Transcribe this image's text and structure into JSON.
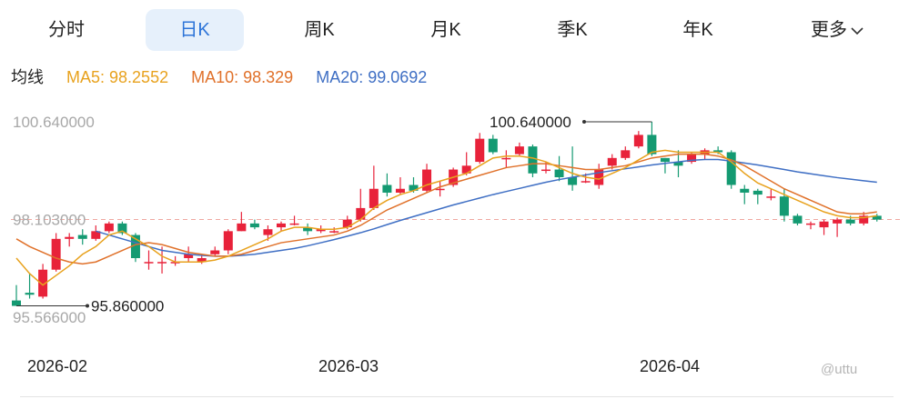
{
  "tabs": [
    {
      "label": "分时",
      "active": false
    },
    {
      "label": "日K",
      "active": true
    },
    {
      "label": "周K",
      "active": false
    },
    {
      "label": "月K",
      "active": false
    },
    {
      "label": "季K",
      "active": false
    },
    {
      "label": "年K",
      "active": false
    }
  ],
  "more": {
    "label": "更多"
  },
  "ma": {
    "title": "均线",
    "ma5": "MA5: 98.2552",
    "ma10": "MA10: 98.329",
    "ma20": "MA20: 99.0692"
  },
  "watermark": "@uttu",
  "colors": {
    "up": "#e8223a",
    "down": "#149a72",
    "ma5": "#e8a21e",
    "ma10": "#e0712a",
    "ma20": "#3f6fc4",
    "ref_line": "#f0a8a0"
  },
  "chart_data": {
    "type": "candlestick",
    "y_axis_labels": [
      "100.640000",
      "98.103000",
      "95.566000"
    ],
    "reference_value": 98.103,
    "annotations": [
      {
        "text": "100.640000",
        "value": 100.64,
        "target": "max-high"
      },
      {
        "text": "95.860000",
        "value": 95.86,
        "target": "min-low"
      }
    ],
    "x_tick_labels": [
      {
        "label": "2026-02",
        "index": 0
      },
      {
        "label": "2026-03",
        "index": 22
      },
      {
        "label": "2026-04",
        "index": 46
      }
    ],
    "ylim": [
      95.566,
      100.64
    ],
    "candles": [
      [
        96.0,
        95.86,
        96.4,
        95.86
      ],
      [
        96.2,
        96.15,
        96.7,
        96.05
      ],
      [
        96.1,
        96.8,
        96.95,
        96.05
      ],
      [
        96.8,
        97.6,
        97.75,
        96.75
      ],
      [
        97.6,
        97.65,
        97.75,
        97.4
      ],
      [
        97.7,
        97.6,
        97.85,
        97.45
      ],
      [
        97.6,
        97.8,
        97.95,
        97.55
      ],
      [
        97.8,
        98.0,
        98.05,
        97.75
      ],
      [
        98.0,
        97.75,
        98.05,
        97.7
      ],
      [
        97.7,
        97.1,
        97.75,
        97.0
      ],
      [
        97.0,
        97.0,
        97.3,
        96.8
      ],
      [
        97.0,
        97.0,
        97.4,
        96.7
      ],
      [
        97.0,
        97.0,
        97.15,
        96.9
      ],
      [
        97.1,
        97.2,
        97.4,
        97.0
      ],
      [
        97.0,
        97.1,
        97.2,
        96.95
      ],
      [
        97.2,
        97.3,
        97.4,
        97.15
      ],
      [
        97.3,
        97.8,
        97.85,
        97.2
      ],
      [
        97.8,
        98.0,
        98.3,
        97.8
      ],
      [
        98.0,
        97.9,
        98.1,
        97.85
      ],
      [
        97.7,
        97.85,
        97.95,
        97.55
      ],
      [
        97.9,
        98.0,
        98.05,
        97.8
      ],
      [
        98.0,
        98.0,
        98.2,
        97.95
      ],
      [
        97.9,
        97.8,
        98.0,
        97.7
      ],
      [
        97.8,
        97.85,
        97.95,
        97.75
      ],
      [
        97.8,
        97.8,
        97.9,
        97.75
      ],
      [
        97.9,
        98.1,
        98.2,
        97.85
      ],
      [
        98.1,
        98.4,
        98.9,
        98.05
      ],
      [
        98.4,
        98.9,
        99.5,
        98.35
      ],
      [
        99.0,
        98.8,
        99.3,
        98.7
      ],
      [
        98.8,
        98.9,
        99.2,
        98.75
      ],
      [
        99.0,
        98.85,
        99.2,
        98.8
      ],
      [
        98.85,
        99.4,
        99.55,
        98.8
      ],
      [
        98.9,
        98.9,
        99.1,
        98.7
      ],
      [
        99.0,
        99.4,
        99.45,
        98.95
      ],
      [
        99.3,
        99.5,
        99.85,
        99.25
      ],
      [
        99.6,
        100.2,
        100.35,
        99.55
      ],
      [
        100.2,
        99.85,
        100.3,
        99.8
      ],
      [
        99.7,
        99.7,
        99.9,
        99.45
      ],
      [
        99.8,
        100.0,
        100.1,
        99.75
      ],
      [
        100.0,
        99.3,
        100.05,
        99.2
      ],
      [
        99.4,
        99.4,
        99.6,
        99.3
      ],
      [
        99.4,
        99.2,
        99.75,
        99.1
      ],
      [
        99.2,
        99.0,
        100.0,
        98.85
      ],
      [
        99.1,
        99.1,
        99.3,
        99.05
      ],
      [
        99.0,
        99.4,
        99.55,
        98.9
      ],
      [
        99.5,
        99.7,
        99.8,
        99.4
      ],
      [
        99.7,
        99.9,
        100.0,
        99.65
      ],
      [
        100.0,
        100.3,
        100.4,
        99.95
      ],
      [
        100.3,
        99.8,
        100.64,
        99.75
      ],
      [
        99.7,
        99.6,
        99.7,
        99.3
      ],
      [
        99.6,
        99.5,
        99.9,
        99.2
      ],
      [
        99.6,
        99.8,
        99.85,
        99.55
      ],
      [
        99.8,
        99.9,
        99.95,
        99.65
      ],
      [
        99.9,
        99.85,
        100.0,
        99.8
      ],
      [
        99.85,
        99.0,
        99.9,
        98.9
      ],
      [
        98.9,
        98.8,
        99.0,
        98.5
      ],
      [
        98.85,
        98.75,
        98.9,
        98.5
      ],
      [
        98.7,
        98.7,
        98.9,
        98.6
      ],
      [
        98.7,
        98.2,
        98.9,
        98.05
      ],
      [
        98.2,
        98.0,
        98.25,
        97.95
      ],
      [
        98.0,
        98.0,
        98.05,
        97.85
      ],
      [
        97.9,
        98.05,
        98.1,
        97.7
      ],
      [
        98.0,
        98.1,
        98.15,
        97.65
      ],
      [
        98.1,
        98.0,
        98.2,
        97.95
      ],
      [
        98.0,
        98.2,
        98.3,
        97.95
      ],
      [
        98.2,
        98.1,
        98.25,
        98.05
      ]
    ],
    "ma5": [
      97.1,
      96.7,
      96.4,
      96.65,
      96.9,
      97.2,
      97.4,
      97.7,
      97.8,
      97.6,
      97.4,
      97.15,
      97.0,
      97.0,
      97.0,
      97.05,
      97.15,
      97.3,
      97.45,
      97.6,
      97.8,
      97.9,
      97.9,
      97.85,
      97.85,
      97.9,
      98.1,
      98.4,
      98.6,
      98.75,
      98.85,
      99.0,
      99.1,
      99.2,
      99.3,
      99.5,
      99.7,
      99.75,
      99.75,
      99.7,
      99.6,
      99.45,
      99.3,
      99.2,
      99.15,
      99.3,
      99.45,
      99.65,
      99.85,
      99.9,
      99.85,
      99.85,
      99.85,
      99.85,
      99.6,
      99.3,
      99.05,
      98.9,
      98.75,
      98.6,
      98.45,
      98.3,
      98.2,
      98.15,
      98.15,
      98.2
    ],
    "ma10": [
      97.6,
      97.4,
      97.25,
      97.1,
      97.0,
      96.95,
      97.0,
      97.15,
      97.3,
      97.45,
      97.5,
      97.45,
      97.35,
      97.25,
      97.2,
      97.15,
      97.15,
      97.2,
      97.3,
      97.4,
      97.5,
      97.55,
      97.6,
      97.65,
      97.7,
      97.8,
      97.95,
      98.15,
      98.35,
      98.5,
      98.65,
      98.8,
      98.95,
      99.05,
      99.15,
      99.25,
      99.35,
      99.45,
      99.5,
      99.55,
      99.55,
      99.5,
      99.45,
      99.4,
      99.4,
      99.45,
      99.5,
      99.6,
      99.7,
      99.75,
      99.8,
      99.8,
      99.8,
      99.75,
      99.65,
      99.5,
      99.3,
      99.1,
      98.9,
      98.75,
      98.6,
      98.45,
      98.3,
      98.25,
      98.25,
      98.3
    ],
    "ma20": [
      null,
      null,
      null,
      null,
      null,
      null,
      97.8,
      97.7,
      97.6,
      97.5,
      97.4,
      97.3,
      97.25,
      97.2,
      97.17,
      97.15,
      97.15,
      97.17,
      97.2,
      97.25,
      97.3,
      97.35,
      97.42,
      97.5,
      97.58,
      97.67,
      97.76,
      97.86,
      97.97,
      98.08,
      98.18,
      98.28,
      98.38,
      98.48,
      98.57,
      98.66,
      98.75,
      98.83,
      98.91,
      98.99,
      99.07,
      99.14,
      99.2,
      99.26,
      99.32,
      99.37,
      99.42,
      99.47,
      99.52,
      99.56,
      99.6,
      99.64,
      99.66,
      99.66,
      99.62,
      99.57,
      99.52,
      99.46,
      99.4,
      99.34,
      99.29,
      99.24,
      99.19,
      99.15,
      99.11,
      99.07
    ]
  }
}
